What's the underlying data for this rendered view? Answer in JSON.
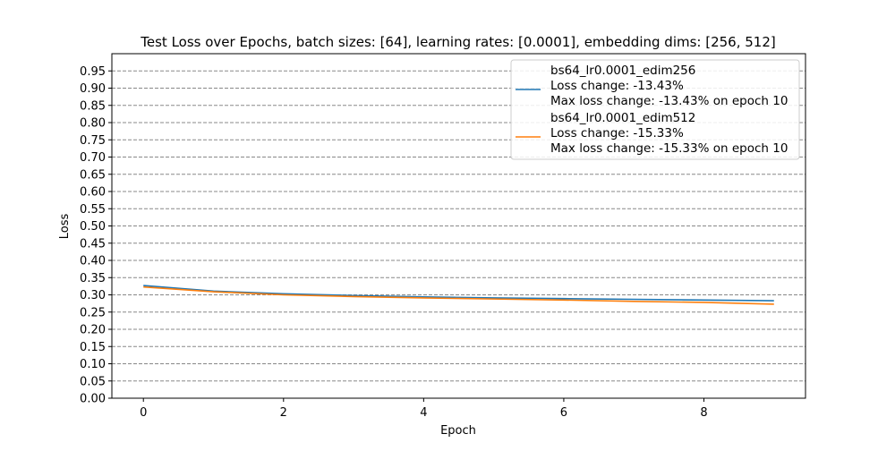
{
  "chart_data": {
    "type": "line",
    "title": "Test Loss over Epochs, batch sizes: [64], learning rates: [0.0001], embedding dims: [256, 512]",
    "xlabel": "Epoch",
    "ylabel": "Loss",
    "xlim": [
      -0.45,
      9.45
    ],
    "ylim": [
      0.0,
      1.0
    ],
    "xticks": [
      0,
      2,
      4,
      6,
      8
    ],
    "yticks": [
      0.0,
      0.05,
      0.1,
      0.15,
      0.2,
      0.25,
      0.3,
      0.35,
      0.4,
      0.45,
      0.5,
      0.55,
      0.6,
      0.65,
      0.7,
      0.75,
      0.8,
      0.85,
      0.9,
      0.95
    ],
    "grid": "horizontal dashed",
    "legend_position": "top-right",
    "x": [
      0,
      1,
      2,
      3,
      4,
      5,
      6,
      7,
      8,
      9
    ],
    "series": [
      {
        "name": "bs64_lr0.0001_edim256",
        "legend_lines": [
          "bs64_lr0.0001_edim256",
          "Loss change: -13.43%",
          "Max loss change: -13.43% on epoch 10"
        ],
        "color": "#1f77b4",
        "values": [
          0.327,
          0.311,
          0.303,
          0.298,
          0.294,
          0.291,
          0.289,
          0.287,
          0.285,
          0.283
        ]
      },
      {
        "name": "bs64_lr0.0001_edim512",
        "legend_lines": [
          "bs64_lr0.0001_edim512",
          "Loss change: -15.33%",
          "Max loss change: -15.33% on epoch 10"
        ],
        "color": "#ff7f0e",
        "values": [
          0.323,
          0.309,
          0.3,
          0.295,
          0.291,
          0.288,
          0.285,
          0.281,
          0.278,
          0.273
        ]
      }
    ]
  }
}
